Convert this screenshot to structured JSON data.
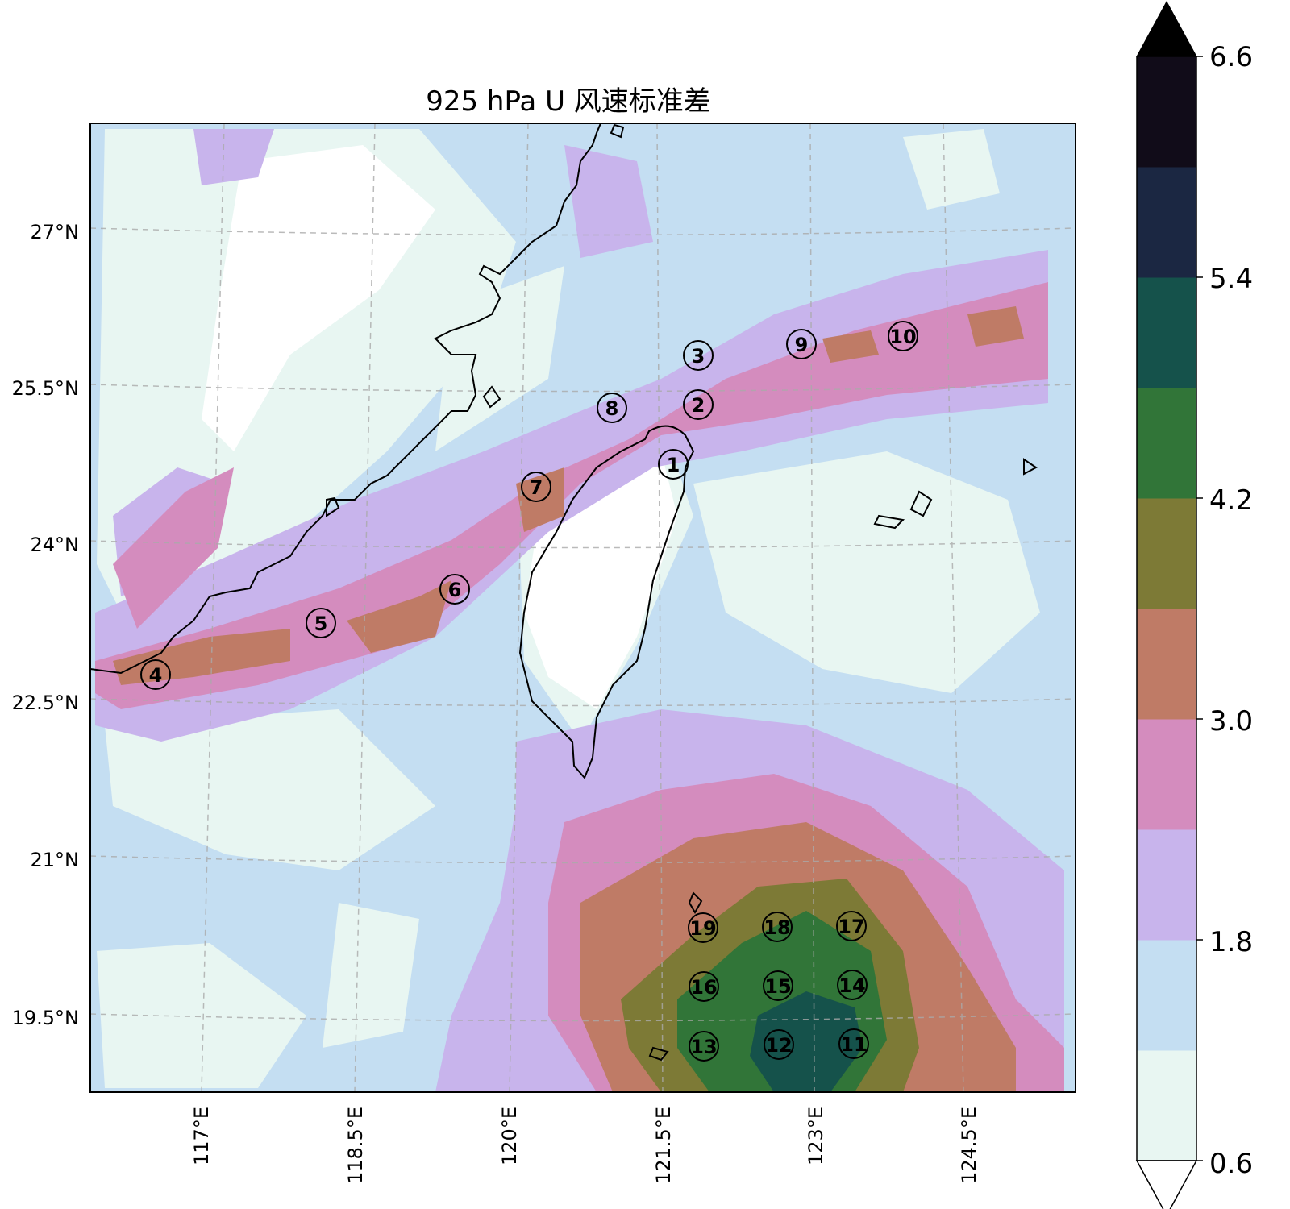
{
  "title": "925 hPa U 风速标准差",
  "lon_ticks": [
    "117°E",
    "118.5°E",
    "120°E",
    "121.5°E",
    "123°E",
    "124.5°E"
  ],
  "lat_ticks": [
    "27°N",
    "25.5°N",
    "24°N",
    "22.5°N",
    "21°N",
    "19.5°N"
  ],
  "colorbar": {
    "ticks": [
      "6.6",
      "5.4",
      "4.2",
      "3.0",
      "1.8",
      "0.6"
    ],
    "levels": [
      0.6,
      1.2,
      1.8,
      2.4,
      3.0,
      3.6,
      4.2,
      4.8,
      5.4,
      6.0,
      6.6
    ],
    "colors": [
      "#e8f6f2",
      "#c4def2",
      "#c8b4ec",
      "#d48cbe",
      "#bf7b66",
      "#7d7a36",
      "#317538",
      "#15524b",
      "#1b2742",
      "#110c19"
    ],
    "extend": "both"
  },
  "stations": [
    {
      "id": "1"
    },
    {
      "id": "2"
    },
    {
      "id": "3"
    },
    {
      "id": "4"
    },
    {
      "id": "5"
    },
    {
      "id": "6"
    },
    {
      "id": "7"
    },
    {
      "id": "8"
    },
    {
      "id": "9"
    },
    {
      "id": "10"
    },
    {
      "id": "11"
    },
    {
      "id": "12"
    },
    {
      "id": "13"
    },
    {
      "id": "14"
    },
    {
      "id": "15"
    },
    {
      "id": "16"
    },
    {
      "id": "17"
    },
    {
      "id": "18"
    },
    {
      "id": "19"
    }
  ]
}
